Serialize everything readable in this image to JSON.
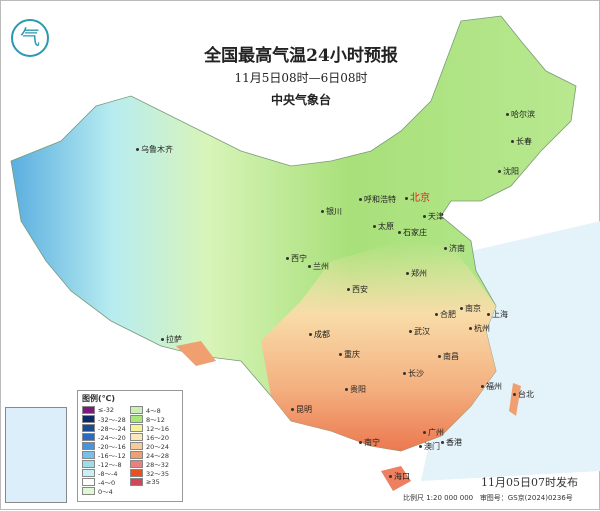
{
  "header": {
    "title": "全国最高气温24小时预报",
    "period": "11月5日08时—6日08时",
    "issuer": "中央气象台"
  },
  "logo": {
    "icon": "cma-logo-icon",
    "glyph": "气"
  },
  "cities": [
    {
      "name": "乌鲁木齐"
    },
    {
      "name": "哈尔滨"
    },
    {
      "name": "长春"
    },
    {
      "name": "沈阳"
    },
    {
      "name": "呼和浩特"
    },
    {
      "name": "北京"
    },
    {
      "name": "天津"
    },
    {
      "name": "银川"
    },
    {
      "name": "太原"
    },
    {
      "name": "石家庄"
    },
    {
      "name": "济南"
    },
    {
      "name": "西宁"
    },
    {
      "name": "兰州"
    },
    {
      "name": "郑州"
    },
    {
      "name": "西安"
    },
    {
      "name": "南京"
    },
    {
      "name": "合肥"
    },
    {
      "name": "上海"
    },
    {
      "name": "武汉"
    },
    {
      "name": "杭州"
    },
    {
      "name": "成都"
    },
    {
      "name": "重庆"
    },
    {
      "name": "拉萨"
    },
    {
      "name": "南昌"
    },
    {
      "name": "长沙"
    },
    {
      "name": "贵阳"
    },
    {
      "name": "福州"
    },
    {
      "name": "台北"
    },
    {
      "name": "昆明"
    },
    {
      "name": "广州"
    },
    {
      "name": "南宁"
    },
    {
      "name": "澳门"
    },
    {
      "name": "香港"
    },
    {
      "name": "海口"
    }
  ],
  "legend": {
    "title": "图例(℃)",
    "items": [
      {
        "label": "≤-32",
        "color": "#7a1a7a"
      },
      {
        "label": "4～8",
        "color": "#c8f0b4"
      },
      {
        "label": "-32～-28",
        "color": "#0a2a6a"
      },
      {
        "label": "8～12",
        "color": "#a8e878"
      },
      {
        "label": "-28～-24",
        "color": "#1a4c94"
      },
      {
        "label": "12～16",
        "color": "#f4f498"
      },
      {
        "label": "-24～-20",
        "color": "#2a6cc0"
      },
      {
        "label": "16～20",
        "color": "#fbe8b8"
      },
      {
        "label": "-20～-16",
        "color": "#4a94dc"
      },
      {
        "label": "20～24",
        "color": "#f8cc98"
      },
      {
        "label": "-16～-12",
        "color": "#78c0ec"
      },
      {
        "label": "24～28",
        "color": "#f0a070"
      },
      {
        "label": "-12～-8",
        "color": "#a0dce8"
      },
      {
        "label": "28～32",
        "color": "#ec8080"
      },
      {
        "label": "-8～-4",
        "color": "#c8f0f4"
      },
      {
        "label": "32～35",
        "color": "#e85020"
      },
      {
        "label": "-4～0",
        "color": "#ffffff"
      },
      {
        "label": "≥35",
        "color": "#d04858"
      },
      {
        "label": "0～4",
        "color": "#e0f8d0"
      }
    ]
  },
  "footer": {
    "published": "11月05日07时发布",
    "scale": "比例尺 1:20 000 000",
    "map_no": "审图号：GS京(2024)0236号"
  }
}
